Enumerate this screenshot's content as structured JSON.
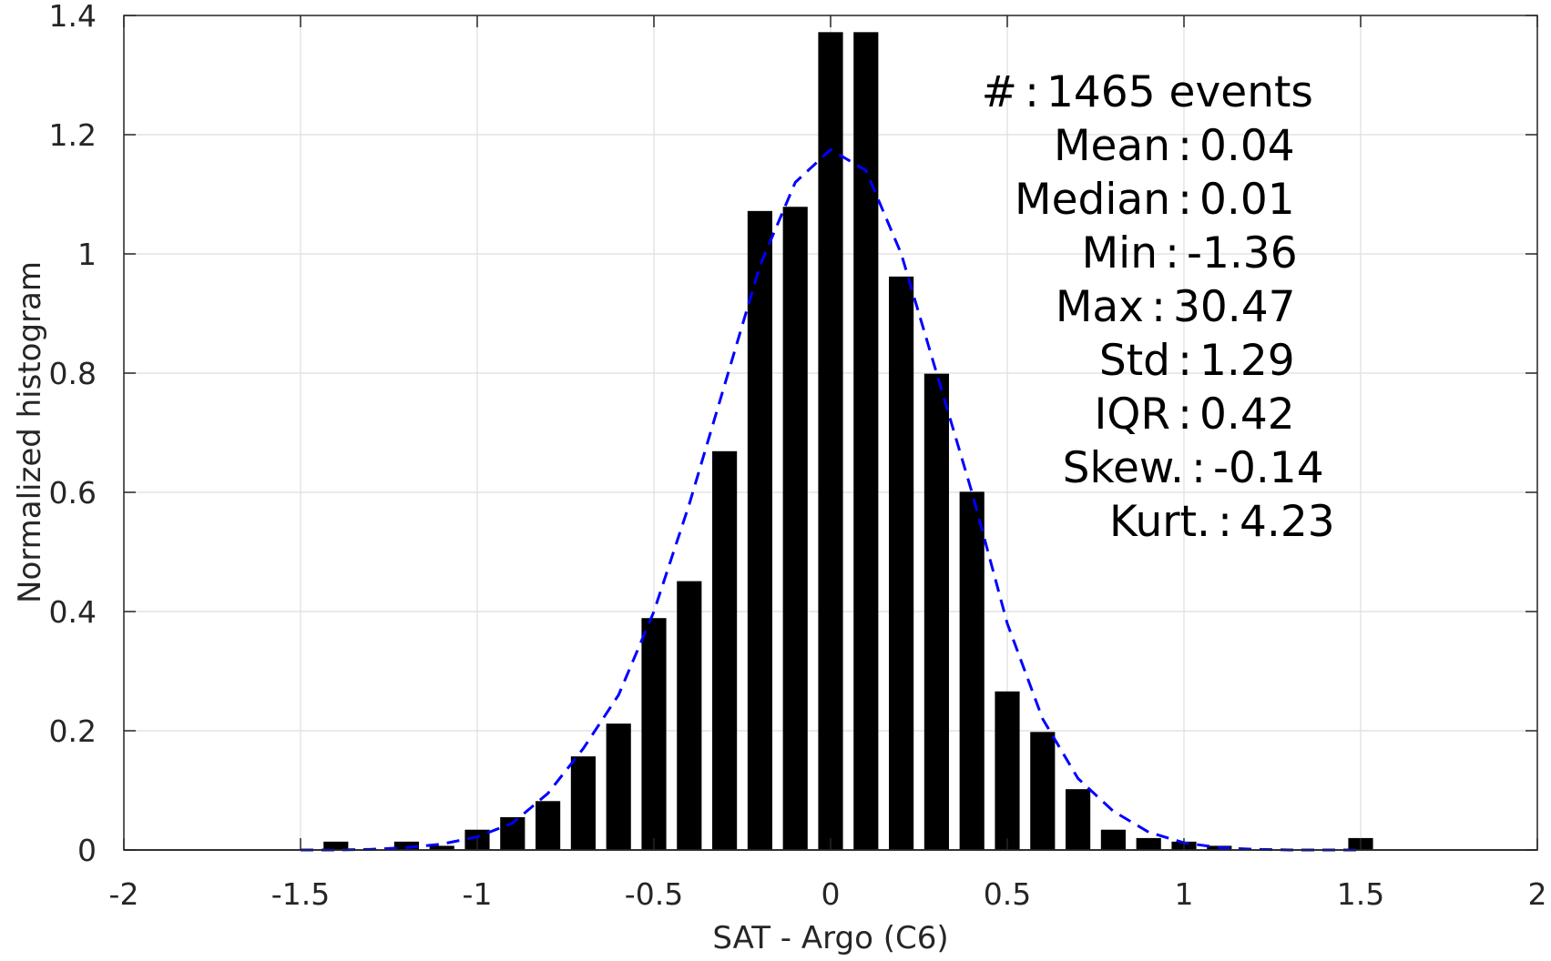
{
  "chart_data": {
    "type": "bar",
    "xlabel": "SAT - Argo (C6)",
    "ylabel": "Normalized histogram",
    "xlim": [
      -2,
      2
    ],
    "ylim": [
      0,
      1.4
    ],
    "xticks": [
      -2,
      -1.5,
      -1,
      -0.5,
      0,
      0.5,
      1,
      1.5,
      2
    ],
    "xtick_labels": [
      "-2",
      "-1.5",
      "-1",
      "-0.5",
      "0",
      "0.5",
      "1",
      "1.5",
      "2"
    ],
    "yticks": [
      0,
      0.2,
      0.4,
      0.6,
      0.8,
      1,
      1.2,
      1.4
    ],
    "ytick_labels": [
      "0",
      "0.2",
      "0.4",
      "0.6",
      "0.8",
      "1",
      "1.2",
      "1.4"
    ],
    "grid": true,
    "bar_width": 0.07,
    "bars": {
      "x": [
        -1.4,
        -1.2,
        -1.1,
        -1.0,
        -0.9,
        -0.8,
        -0.7,
        -0.6,
        -0.5,
        -0.4,
        -0.3,
        -0.2,
        -0.1,
        0.0,
        0.1,
        0.2,
        0.3,
        0.4,
        0.5,
        0.6,
        0.7,
        0.8,
        0.9,
        1.0,
        1.1,
        1.5
      ],
      "values": [
        0.014,
        0.014,
        0.007,
        0.034,
        0.055,
        0.082,
        0.157,
        0.212,
        0.389,
        0.451,
        0.669,
        1.072,
        1.079,
        1.372,
        1.372,
        0.962,
        0.799,
        0.601,
        0.266,
        0.198,
        0.102,
        0.034,
        0.02,
        0.014,
        0.007,
        0.02
      ],
      "color": "#000000"
    },
    "fit_curve": {
      "style": "dashed",
      "color": "#0000ff",
      "x": [
        -1.5,
        -1.4,
        -1.3,
        -1.2,
        -1.1,
        -1.0,
        -0.9,
        -0.8,
        -0.7,
        -0.6,
        -0.5,
        -0.4,
        -0.3,
        -0.2,
        -0.1,
        0.0,
        0.1,
        0.2,
        0.3,
        0.4,
        0.5,
        0.6,
        0.7,
        0.8,
        0.9,
        1.0,
        1.1,
        1.2,
        1.3,
        1.4,
        1.5
      ],
      "y": [
        0.0,
        0.0,
        0.001,
        0.004,
        0.01,
        0.022,
        0.045,
        0.095,
        0.17,
        0.26,
        0.4,
        0.58,
        0.78,
        0.98,
        1.12,
        1.175,
        1.14,
        1.0,
        0.8,
        0.6,
        0.38,
        0.22,
        0.12,
        0.065,
        0.03,
        0.012,
        0.004,
        0.001,
        0.0,
        0.0,
        0.0
      ]
    },
    "annotations": [
      {
        "label": "#",
        "sep": ":",
        "value": "1465 events"
      },
      {
        "label": "Mean",
        "sep": ":",
        "value": "0.04"
      },
      {
        "label": "Median",
        "sep": ":",
        "value": "0.01"
      },
      {
        "label": "Min",
        "sep": ":",
        "value": "-1.36"
      },
      {
        "label": "Max",
        "sep": ":",
        "value": "30.47"
      },
      {
        "label": "Std",
        "sep": ":",
        "value": "1.29"
      },
      {
        "label": "IQR",
        "sep": ":",
        "value": "0.42"
      },
      {
        "label": "Skew.",
        "sep": ":",
        "value": "-0.14"
      },
      {
        "label": "Kurt.",
        "sep": ":",
        "value": "4.23"
      }
    ]
  }
}
